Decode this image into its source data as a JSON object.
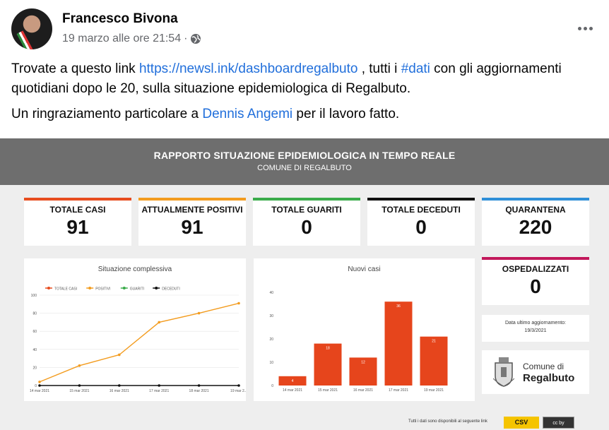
{
  "post": {
    "author": "Francesco Bivona",
    "timestamp": "19 marzo alle ore 21:54",
    "separator": "·",
    "line1_a": "Trovate a questo link ",
    "line1_link": "https://newsl.ink/dashboardregalbuto",
    "line1_b": " , tutti i ",
    "line1_hashtag": "#dati",
    "line1_c": " con gli aggiornamenti quotidiani dopo le 20, sulla situazione epidemiologica di Regalbuto.",
    "line2_a": "Un ringraziamento particolare a ",
    "line2_mention": "Dennis Angemi",
    "line2_b": " per il lavoro fatto."
  },
  "icons": {
    "globe": "globe-icon",
    "more": "more-options-icon",
    "avatar": "profile-avatar"
  },
  "dashboard": {
    "title": "RAPPORTO SITUAZIONE EPIDEMIOLOGICA IN TEMPO REALE",
    "subtitle": "COMUNE DI REGALBUTO",
    "kpis": [
      {
        "label": "TOTALE CASI",
        "value": "91",
        "color": "#e74c1e"
      },
      {
        "label": "ATTUALMENTE POSITIVI",
        "value": "91",
        "color": "#f39c1f"
      },
      {
        "label": "TOTALE GUARITI",
        "value": "0",
        "color": "#3aab4a"
      },
      {
        "label": "TOTALE DECEDUTI",
        "value": "0",
        "color": "#111111"
      },
      {
        "label": "QUARANTENA",
        "value": "220",
        "color": "#2f8fd8"
      }
    ],
    "ospedalizzati": {
      "label": "OSPEDALIZZATI",
      "value": "0",
      "color": "#c2185b"
    },
    "update": {
      "label": "Data ultimo aggiornamento:",
      "value": "19/3/2021"
    },
    "logo": {
      "line1": "Comune di",
      "line2": "Regalbuto"
    },
    "footer_note": "Tutti i dati sono disponibili al seguente link",
    "csv_label": "CSV",
    "cc_label": "cc by"
  },
  "chart_data": [
    {
      "type": "line",
      "title": "Situazione complessiva",
      "categories": [
        "14 mar 2021",
        "15 mar 2021",
        "16 mar 2021",
        "17 mar 2021",
        "18 mar 2021",
        "19 mar 2..."
      ],
      "series": [
        {
          "name": "TOTALE CASI",
          "color": "#e74c1e",
          "values": [
            null,
            null,
            null,
            null,
            null,
            null
          ]
        },
        {
          "name": "POSITIVI",
          "color": "#f39c1f",
          "values": [
            4,
            22,
            34,
            70,
            80,
            91
          ]
        },
        {
          "name": "GUARITI",
          "color": "#3aab4a",
          "values": [
            null,
            null,
            null,
            null,
            null,
            null
          ]
        },
        {
          "name": "DECEDUTI",
          "color": "#111111",
          "values": [
            0,
            0,
            0,
            0,
            0,
            0
          ]
        }
      ],
      "yticks": [
        "0",
        "20",
        "40",
        "60",
        "80",
        "100"
      ],
      "ylim": [
        0,
        100
      ]
    },
    {
      "type": "bar",
      "title": "Nuovi casi",
      "categories": [
        "14 mar 2021",
        "15 mar 2021",
        "16 mar 2021",
        "17 mar 2021",
        "19 mar 2021"
      ],
      "values": [
        4,
        18,
        12,
        36,
        21
      ],
      "yticks": [
        "0",
        "10",
        "20",
        "30",
        "40"
      ],
      "ylim": [
        0,
        40
      ],
      "color": "#e6451c"
    }
  ]
}
